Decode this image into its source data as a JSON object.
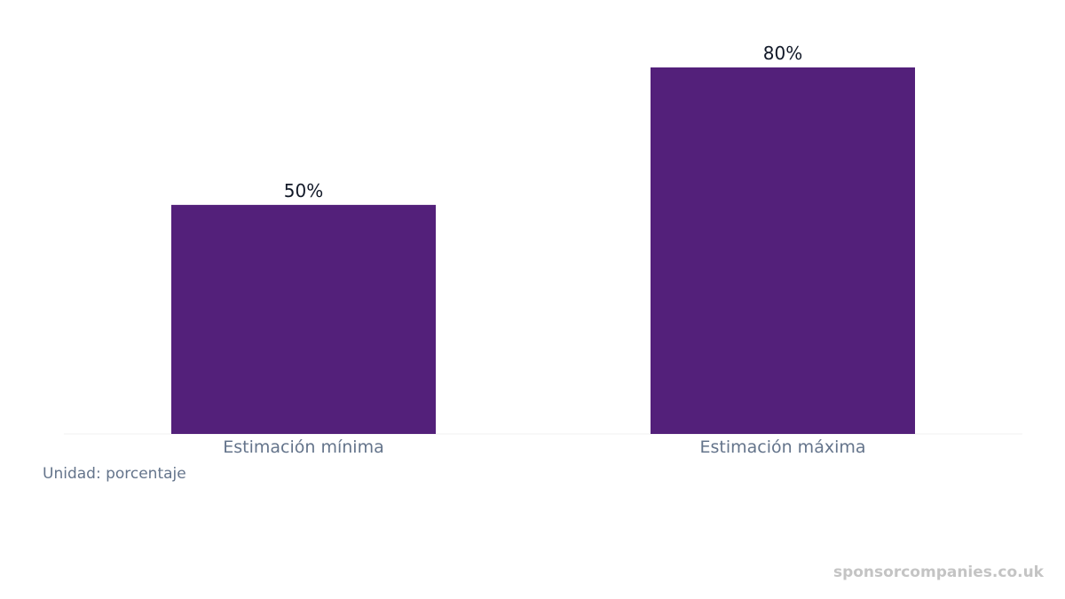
{
  "chart_data": {
    "type": "bar",
    "categories": [
      "Estimación mínima",
      "Estimación máxima"
    ],
    "values": [
      50,
      80
    ],
    "value_labels": [
      "50%",
      "80%"
    ],
    "unit_note": "Unidad: porcentaje",
    "ylim": [
      0,
      80
    ],
    "grid": false,
    "bar_color": "#53207a",
    "axis_color": "#f1f1f1"
  },
  "watermark": "sponsorcompanies.co.uk"
}
